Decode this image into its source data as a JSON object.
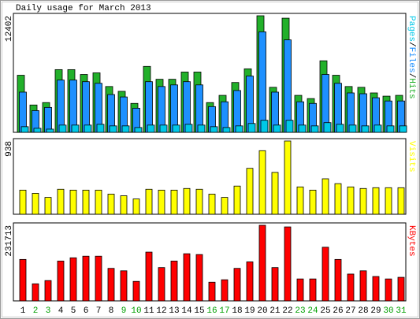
{
  "chart_data": [
    {
      "type": "bar",
      "title": "Daily usage for March 2013",
      "categories": [
        "1",
        "2",
        "3",
        "4",
        "5",
        "6",
        "7",
        "8",
        "9",
        "10",
        "11",
        "12",
        "13",
        "14",
        "15",
        "16",
        "17",
        "18",
        "19",
        "20",
        "21",
        "22",
        "23",
        "24",
        "25",
        "26",
        "27",
        "28",
        "29",
        "30",
        "31"
      ],
      "category_colors": [
        "#000000",
        "#00a000",
        "#00a000",
        "#000000",
        "#000000",
        "#000000",
        "#000000",
        "#000000",
        "#00a000",
        "#00a000",
        "#000000",
        "#000000",
        "#000000",
        "#000000",
        "#000000",
        "#00a000",
        "#00a000",
        "#000000",
        "#000000",
        "#000000",
        "#000000",
        "#000000",
        "#00a000",
        "#00a000",
        "#000000",
        "#000000",
        "#000000",
        "#000000",
        "#000000",
        "#00a000",
        "#00a000"
      ],
      "legend_separator": "/",
      "series": [
        {
          "name": "Hits",
          "color": "#22b02a",
          "values": [
            6073,
            2908,
            3165,
            6672,
            6672,
            6158,
            6329,
            4875,
            4362,
            3079,
            7014,
            5645,
            5645,
            6415,
            6415,
            3165,
            3934,
            5303,
            6757,
            12402,
            4790,
            12145,
            3934,
            3592,
            7612,
            6073,
            4875,
            4790,
            4191,
            3849,
            3934
          ]
        },
        {
          "name": "Files",
          "color": "#1e90ff",
          "values": [
            4277,
            2309,
            2651,
            5560,
            5560,
            5389,
            5217,
            4020,
            3763,
            2566,
            5389,
            4875,
            5046,
            5389,
            5046,
            2737,
            3250,
            4448,
            5987,
            10691,
            4277,
            9836,
            3250,
            3079,
            6158,
            5217,
            4191,
            4106,
            3678,
            3336,
            3336
          ]
        },
        {
          "name": "Pages",
          "color": "#00c8e8",
          "values": [
            600,
            430,
            340,
            770,
            770,
            770,
            855,
            685,
            685,
            510,
            770,
            770,
            770,
            855,
            770,
            600,
            510,
            685,
            940,
            1280,
            770,
            1280,
            770,
            685,
            1030,
            855,
            770,
            685,
            770,
            685,
            685
          ]
        }
      ],
      "ylim": [
        0,
        12402
      ],
      "yticks": [
        12402
      ]
    },
    {
      "type": "bar",
      "series": [
        {
          "name": "Visits",
          "color": "#ffff00",
          "values": [
            309,
            268,
            216,
            320,
            309,
            309,
            309,
            258,
            237,
            196,
            320,
            309,
            309,
            330,
            320,
            258,
            216,
            361,
            588,
            814,
            536,
            938,
            350,
            309,
            454,
            392,
            350,
            330,
            340,
            340,
            340
          ]
        }
      ],
      "ylim": [
        0,
        938
      ],
      "yticks": [
        938
      ]
    },
    {
      "type": "bar",
      "series": [
        {
          "name": "KBytes",
          "color": "#ff0000",
          "values": [
            127068,
            52322,
            62288,
            122085,
            132051,
            137034,
            137034,
            99661,
            92186,
            59797,
            149492,
            102153,
            122085,
            144509,
            142018,
            57305,
            64780,
            99661,
            119593,
            231713,
            102153,
            226730,
            67271,
            67271,
            164441,
            127068,
            82220,
            92186,
            74746,
            67271,
            72254
          ]
        }
      ],
      "ylim": [
        0,
        231713
      ],
      "yticks": [
        231713
      ]
    }
  ]
}
